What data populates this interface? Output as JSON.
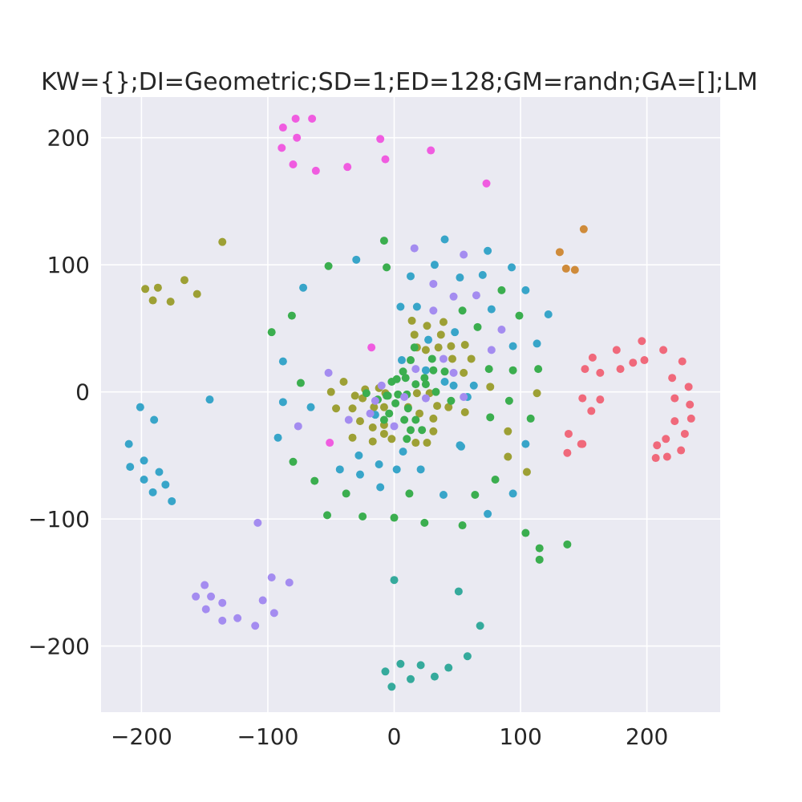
{
  "chart_data": {
    "type": "scatter",
    "title": "KW={};DI=Geometric;SD=1;ED=128;GM=randn;GA=[];LM",
    "xlabel": "",
    "ylabel": "",
    "xlim": [
      -232,
      258
    ],
    "ylim": [
      -252,
      232
    ],
    "xticks": [
      -200,
      -100,
      0,
      100,
      200
    ],
    "yticks": [
      -200,
      -100,
      0,
      100,
      200
    ],
    "xtick_labels": [
      "−200",
      "−100",
      "0",
      "100",
      "200"
    ],
    "ytick_labels": [
      "−200",
      "−100",
      "0",
      "100",
      "200"
    ],
    "grid": true,
    "legend": "none",
    "colors": {
      "background": "#eaeaf2",
      "grid": "#ffffff",
      "text": "#262626",
      "red": "#f0697b",
      "orange": "#cf8b3a",
      "olive": "#9da035",
      "green": "#3bae4f",
      "teal": "#35aa9c",
      "blue": "#38a5c9",
      "purple": "#a48cf0",
      "magenta": "#f05ce0"
    },
    "series": [
      {
        "color": "red",
        "points": [
          [
            196,
            40
          ],
          [
            213,
            33
          ],
          [
            176,
            33
          ],
          [
            228,
            24
          ],
          [
            189,
            23
          ],
          [
            157,
            27
          ],
          [
            198,
            25
          ],
          [
            179,
            18
          ],
          [
            151,
            18
          ],
          [
            163,
            15
          ],
          [
            220,
            11
          ],
          [
            233,
            4
          ],
          [
            149,
            -5
          ],
          [
            163,
            -6
          ],
          [
            222,
            -5
          ],
          [
            234,
            -10
          ],
          [
            156,
            -15
          ],
          [
            235,
            -21
          ],
          [
            222,
            -23
          ],
          [
            230,
            -33
          ],
          [
            138,
            -33
          ],
          [
            215,
            -37
          ],
          [
            149,
            -41
          ],
          [
            148,
            -41
          ],
          [
            208,
            -42
          ],
          [
            137,
            -48
          ],
          [
            216,
            -51
          ],
          [
            207,
            -52
          ],
          [
            227,
            -46
          ]
        ]
      },
      {
        "color": "orange",
        "points": [
          [
            150,
            128
          ],
          [
            131,
            110
          ],
          [
            136,
            97
          ],
          [
            143,
            96
          ]
        ]
      },
      {
        "color": "olive",
        "points": [
          [
            -136,
            118
          ],
          [
            -166,
            88
          ],
          [
            -197,
            81
          ],
          [
            -187,
            82
          ],
          [
            -156,
            77
          ],
          [
            -191,
            72
          ],
          [
            -177,
            71
          ],
          [
            14,
            56
          ],
          [
            39,
            55
          ],
          [
            26,
            52
          ],
          [
            16,
            45
          ],
          [
            37,
            45
          ],
          [
            18,
            35
          ],
          [
            35,
            35
          ],
          [
            45,
            36
          ],
          [
            56,
            37
          ],
          [
            25,
            33
          ],
          [
            61,
            26
          ],
          [
            46,
            26
          ],
          [
            -40,
            8
          ],
          [
            -23,
            2
          ],
          [
            -12,
            3
          ],
          [
            -50,
            0
          ],
          [
            -31,
            -3
          ],
          [
            -25,
            -5
          ],
          [
            -7,
            -1
          ],
          [
            18,
            -1
          ],
          [
            28,
            -1
          ],
          [
            -46,
            -13
          ],
          [
            -33,
            -13
          ],
          [
            -16,
            -12
          ],
          [
            -8,
            -12
          ],
          [
            11,
            -12
          ],
          [
            34,
            -11
          ],
          [
            43,
            -12
          ],
          [
            56,
            -16
          ],
          [
            -27,
            -23
          ],
          [
            -17,
            -28
          ],
          [
            -8,
            -26
          ],
          [
            -33,
            -36
          ],
          [
            -17,
            -39
          ],
          [
            -8,
            -33
          ],
          [
            -2,
            -37
          ],
          [
            17,
            -40
          ],
          [
            26,
            -40
          ],
          [
            31,
            -21
          ],
          [
            31,
            -31
          ],
          [
            55,
            15
          ],
          [
            76,
            4
          ],
          [
            90,
            -31
          ],
          [
            90,
            -51
          ],
          [
            105,
            -63
          ],
          [
            113,
            -1
          ],
          [
            20,
            -17
          ]
        ]
      },
      {
        "color": "green",
        "points": [
          [
            -8,
            119
          ],
          [
            -52,
            99
          ],
          [
            -6,
            98
          ],
          [
            -97,
            47
          ],
          [
            -81,
            60
          ],
          [
            -74,
            7
          ],
          [
            99,
            60
          ],
          [
            85,
            80
          ],
          [
            66,
            51
          ],
          [
            54,
            64
          ],
          [
            75,
            18
          ],
          [
            94,
            17
          ],
          [
            114,
            18
          ],
          [
            76,
            -20
          ],
          [
            91,
            -7
          ],
          [
            108,
            -21
          ],
          [
            -6,
            -3
          ],
          [
            3,
            -2
          ],
          [
            10,
            -2
          ],
          [
            1,
            -9
          ],
          [
            -4,
            -17
          ],
          [
            8,
            -22
          ],
          [
            17,
            -22
          ],
          [
            13,
            -30
          ],
          [
            22,
            -30
          ],
          [
            10,
            -37
          ],
          [
            -22,
            -1
          ],
          [
            -13,
            -6
          ],
          [
            7,
            16
          ],
          [
            17,
            6
          ],
          [
            25,
            6
          ],
          [
            31,
            17
          ],
          [
            45,
            -7
          ],
          [
            33,
            0
          ],
          [
            24,
            11
          ],
          [
            9,
            11
          ],
          [
            13,
            25
          ],
          [
            16,
            35
          ],
          [
            -80,
            -55
          ],
          [
            -63,
            -70
          ],
          [
            -38,
            -80
          ],
          [
            -53,
            -97
          ],
          [
            -25,
            -98
          ],
          [
            0,
            -99
          ],
          [
            24,
            -103
          ],
          [
            54,
            -105
          ],
          [
            12,
            -80
          ],
          [
            64,
            -81
          ],
          [
            80,
            -69
          ],
          [
            104,
            -111
          ],
          [
            115,
            -123
          ],
          [
            115,
            -132
          ],
          [
            137,
            -120
          ],
          [
            -8,
            -22
          ],
          [
            11,
            -13
          ],
          [
            -5,
            -3
          ],
          [
            -2,
            8
          ],
          [
            2,
            10
          ],
          [
            30,
            26
          ],
          [
            40,
            16
          ]
        ]
      },
      {
        "color": "teal",
        "points": [
          [
            0,
            -148
          ],
          [
            51,
            -157
          ],
          [
            68,
            -184
          ],
          [
            58,
            -208
          ],
          [
            -7,
            -220
          ],
          [
            -2,
            -232
          ],
          [
            5,
            -214
          ],
          [
            13,
            -226
          ],
          [
            21,
            -215
          ],
          [
            32,
            -224
          ],
          [
            43,
            -217
          ]
        ]
      },
      {
        "color": "blue",
        "points": [
          [
            40,
            120
          ],
          [
            -30,
            104
          ],
          [
            74,
            111
          ],
          [
            93,
            98
          ],
          [
            70,
            92
          ],
          [
            -72,
            82
          ],
          [
            32,
            100
          ],
          [
            52,
            90
          ],
          [
            13,
            91
          ],
          [
            104,
            80
          ],
          [
            18,
            67
          ],
          [
            5,
            67
          ],
          [
            77,
            65
          ],
          [
            122,
            61
          ],
          [
            48,
            47
          ],
          [
            27,
            41
          ],
          [
            113,
            38
          ],
          [
            94,
            36
          ],
          [
            -88,
            24
          ],
          [
            6,
            25
          ],
          [
            25,
            17
          ],
          [
            40,
            8
          ],
          [
            -88,
            -8
          ],
          [
            -66,
            -12
          ],
          [
            -146,
            -6
          ],
          [
            -201,
            -12
          ],
          [
            -190,
            -22
          ],
          [
            -210,
            -41
          ],
          [
            -198,
            -54
          ],
          [
            -209,
            -59
          ],
          [
            -198,
            -69
          ],
          [
            -186,
            -63
          ],
          [
            -181,
            -73
          ],
          [
            -191,
            -79
          ],
          [
            -176,
            -86
          ],
          [
            -92,
            -36
          ],
          [
            -28,
            -50
          ],
          [
            -12,
            -57
          ],
          [
            -43,
            -61
          ],
          [
            -27,
            -65
          ],
          [
            2,
            -61
          ],
          [
            21,
            -61
          ],
          [
            -11,
            -75
          ],
          [
            39,
            -81
          ],
          [
            74,
            -96
          ],
          [
            94,
            -80
          ],
          [
            104,
            -41
          ],
          [
            53,
            -43
          ],
          [
            7,
            -47
          ],
          [
            -15,
            -18
          ],
          [
            47,
            5
          ],
          [
            58,
            -4
          ],
          [
            63,
            5
          ],
          [
            52,
            -42
          ]
        ]
      },
      {
        "color": "purple",
        "points": [
          [
            16,
            113
          ],
          [
            55,
            108
          ],
          [
            31,
            85
          ],
          [
            47,
            75
          ],
          [
            65,
            76
          ],
          [
            31,
            64
          ],
          [
            85,
            49
          ],
          [
            77,
            33
          ],
          [
            39,
            26
          ],
          [
            -52,
            15
          ],
          [
            17,
            18
          ],
          [
            47,
            15
          ],
          [
            -10,
            5
          ],
          [
            8,
            -4
          ],
          [
            25,
            -5
          ],
          [
            -15,
            -7
          ],
          [
            -36,
            -22
          ],
          [
            -76,
            -27
          ],
          [
            0,
            -27
          ],
          [
            -19,
            -17
          ],
          [
            55,
            -4
          ],
          [
            -108,
            -103
          ],
          [
            -97,
            -146
          ],
          [
            -83,
            -150
          ],
          [
            -150,
            -152
          ],
          [
            -104,
            -164
          ],
          [
            -157,
            -161
          ],
          [
            -145,
            -161
          ],
          [
            -136,
            -166
          ],
          [
            -149,
            -171
          ],
          [
            -95,
            -174
          ],
          [
            -124,
            -178
          ],
          [
            -136,
            -180
          ],
          [
            -110,
            -184
          ]
        ]
      },
      {
        "color": "magenta",
        "points": [
          [
            -88,
            208
          ],
          [
            -78,
            215
          ],
          [
            -65,
            215
          ],
          [
            -77,
            200
          ],
          [
            -11,
            199
          ],
          [
            -89,
            192
          ],
          [
            29,
            190
          ],
          [
            -7,
            183
          ],
          [
            -80,
            179
          ],
          [
            -62,
            174
          ],
          [
            -37,
            177
          ],
          [
            73,
            164
          ],
          [
            -18,
            35
          ],
          [
            -51,
            -40
          ]
        ]
      }
    ]
  }
}
